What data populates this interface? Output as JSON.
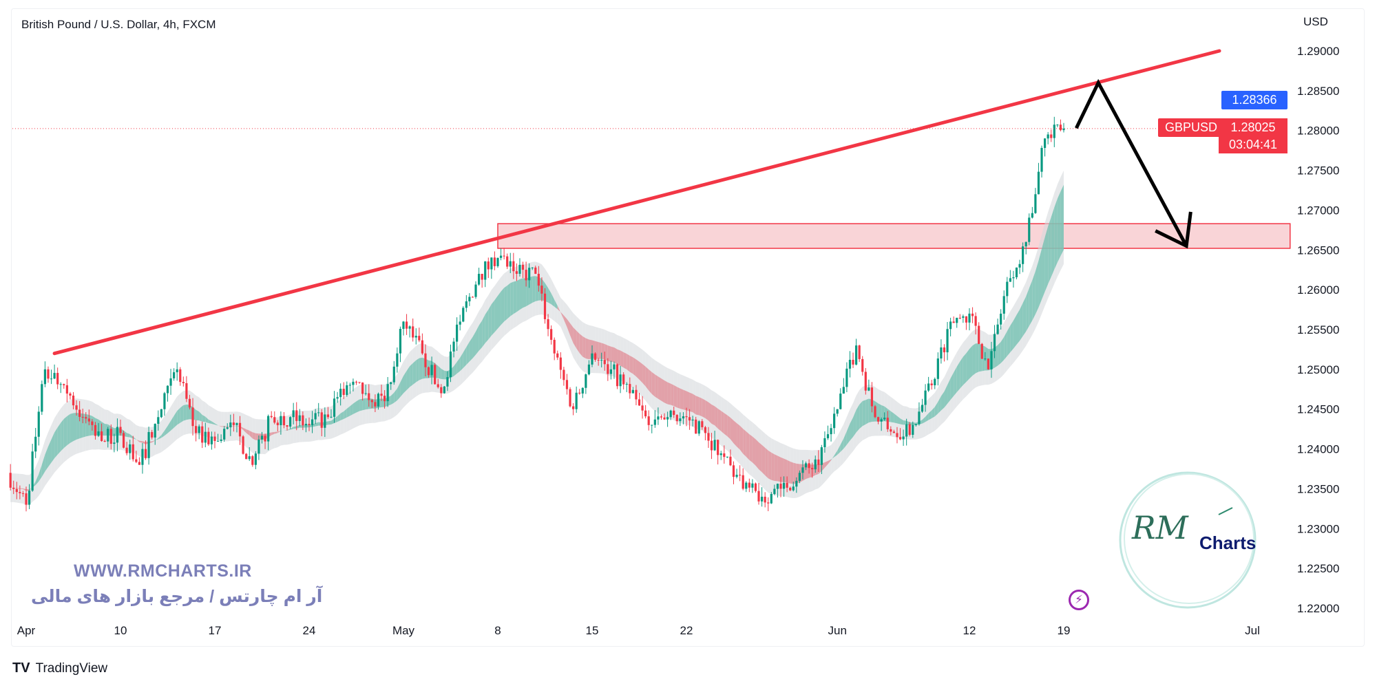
{
  "header": {
    "title": "British Pound / U.S. Dollar, 4h, FXCM"
  },
  "price_axis": {
    "currency": "USD"
  },
  "labels": {
    "high_price": "1.28366",
    "symbol": "GBPUSD",
    "last_price": "1.28025",
    "countdown": "03:04:41"
  },
  "watermark": {
    "url": "WWW.RMCHARTS.IR",
    "tagline": "آر ام چارتس / مرجع بازار های مالی",
    "logo_script": "RM",
    "logo_text": "Charts"
  },
  "footer": {
    "brand": "TradingView"
  },
  "colors": {
    "up": "#089981",
    "down": "#f23645",
    "trendline": "#f23645",
    "zone_fill": "#f8c9cd",
    "arrow": "#000000",
    "high_label": "#2962ff",
    "last_label": "#f23645",
    "watermark": "#7b7fb8",
    "lightning": "#9c27b0"
  },
  "icons": {
    "lightning": "lightning-icon",
    "tradingview_logo": "tradingview-logo-icon"
  },
  "chart_data": {
    "type": "candlestick",
    "title": "British Pound / U.S. Dollar, 4h, FXCM",
    "symbol": "GBPUSD",
    "interval": "4h",
    "ylim": [
      1.2175,
      1.2925
    ],
    "y_ticks": [
      "1.22000",
      "1.22500",
      "1.23000",
      "1.23500",
      "1.24000",
      "1.24500",
      "1.25000",
      "1.25500",
      "1.26000",
      "1.26500",
      "1.27000",
      "1.27500",
      "1.28000",
      "1.28500",
      "1.29000"
    ],
    "x_ticks": [
      {
        "label": "Apr",
        "date": "2023-04-03"
      },
      {
        "label": "10",
        "date": "2023-04-10"
      },
      {
        "label": "17",
        "date": "2023-04-17"
      },
      {
        "label": "24",
        "date": "2023-04-24"
      },
      {
        "label": "May",
        "date": "2023-05-01"
      },
      {
        "label": "8",
        "date": "2023-05-08"
      },
      {
        "label": "15",
        "date": "2023-05-15"
      },
      {
        "label": "22",
        "date": "2023-05-22"
      },
      {
        "label": "Jun",
        "date": "2023-06-01"
      },
      {
        "label": "12",
        "date": "2023-06-12"
      },
      {
        "label": "19",
        "date": "2023-06-19"
      },
      {
        "label": "Jul",
        "date": "2023-07-03"
      }
    ],
    "daily_closes": [
      {
        "date": "2023-03-31",
        "close": 1.237
      },
      {
        "date": "2023-04-03",
        "close": 1.233
      },
      {
        "date": "2023-04-04",
        "close": 1.25
      },
      {
        "date": "2023-04-05",
        "close": 1.248
      },
      {
        "date": "2023-04-06",
        "close": 1.244
      },
      {
        "date": "2023-04-07",
        "close": 1.241
      },
      {
        "date": "2023-04-10",
        "close": 1.242
      },
      {
        "date": "2023-04-11",
        "close": 1.238
      },
      {
        "date": "2023-04-12",
        "close": 1.244
      },
      {
        "date": "2023-04-13",
        "close": 1.25
      },
      {
        "date": "2023-04-14",
        "close": 1.242
      },
      {
        "date": "2023-04-17",
        "close": 1.241
      },
      {
        "date": "2023-04-18",
        "close": 1.243
      },
      {
        "date": "2023-04-19",
        "close": 1.238
      },
      {
        "date": "2023-04-20",
        "close": 1.244
      },
      {
        "date": "2023-04-21",
        "close": 1.244
      },
      {
        "date": "2023-04-24",
        "close": 1.243
      },
      {
        "date": "2023-04-25",
        "close": 1.244
      },
      {
        "date": "2023-04-26",
        "close": 1.248
      },
      {
        "date": "2023-04-27",
        "close": 1.247
      },
      {
        "date": "2023-04-28",
        "close": 1.246
      },
      {
        "date": "2023-05-01",
        "close": 1.256
      },
      {
        "date": "2023-05-02",
        "close": 1.252
      },
      {
        "date": "2023-05-03",
        "close": 1.247
      },
      {
        "date": "2023-05-04",
        "close": 1.256
      },
      {
        "date": "2023-05-05",
        "close": 1.262
      },
      {
        "date": "2023-05-08",
        "close": 1.264
      },
      {
        "date": "2023-05-09",
        "close": 1.262
      },
      {
        "date": "2023-05-10",
        "close": 1.262
      },
      {
        "date": "2023-05-11",
        "close": 1.252
      },
      {
        "date": "2023-05-12",
        "close": 1.245
      },
      {
        "date": "2023-05-15",
        "close": 1.252
      },
      {
        "date": "2023-05-16",
        "close": 1.25
      },
      {
        "date": "2023-05-17",
        "close": 1.247
      },
      {
        "date": "2023-05-18",
        "close": 1.243
      },
      {
        "date": "2023-05-19",
        "close": 1.244
      },
      {
        "date": "2023-05-22",
        "close": 1.244
      },
      {
        "date": "2023-05-23",
        "close": 1.242
      },
      {
        "date": "2023-05-24",
        "close": 1.239
      },
      {
        "date": "2023-05-25",
        "close": 1.235
      },
      {
        "date": "2023-05-26",
        "close": 1.234
      },
      {
        "date": "2023-05-29",
        "close": 1.235
      },
      {
        "date": "2023-05-30",
        "close": 1.237
      },
      {
        "date": "2023-05-31",
        "close": 1.238
      },
      {
        "date": "2023-06-01",
        "close": 1.245
      },
      {
        "date": "2023-06-02",
        "close": 1.253
      },
      {
        "date": "2023-06-05",
        "close": 1.244
      },
      {
        "date": "2023-06-06",
        "close": 1.242
      },
      {
        "date": "2023-06-07",
        "close": 1.243
      },
      {
        "date": "2023-06-08",
        "close": 1.248
      },
      {
        "date": "2023-06-09",
        "close": 1.256
      },
      {
        "date": "2023-06-12",
        "close": 1.257
      },
      {
        "date": "2023-06-13",
        "close": 1.25
      },
      {
        "date": "2023-06-14",
        "close": 1.261
      },
      {
        "date": "2023-06-15",
        "close": 1.266
      },
      {
        "date": "2023-06-16",
        "close": 1.279
      },
      {
        "date": "2023-06-19",
        "close": 1.28025
      }
    ],
    "last_price": 1.28025,
    "high_marker": 1.28366,
    "annotations": {
      "trendline": {
        "from": {
          "date": "2023-04-04T12",
          "price": 1.252
        },
        "to": {
          "date": "2023-06-29T06",
          "price": 1.29
        }
      },
      "zone": {
        "from": "2023-05-08",
        "to": "2023-07-05",
        "top": 1.2683,
        "bottom": 1.2652
      },
      "arrow_path": [
        {
          "date": "2023-06-19T16",
          "price": 1.2803
        },
        {
          "date": "2023-06-20T20",
          "price": 1.286
        },
        {
          "date": "2023-06-27T12",
          "price": 1.2655
        }
      ]
    }
  }
}
